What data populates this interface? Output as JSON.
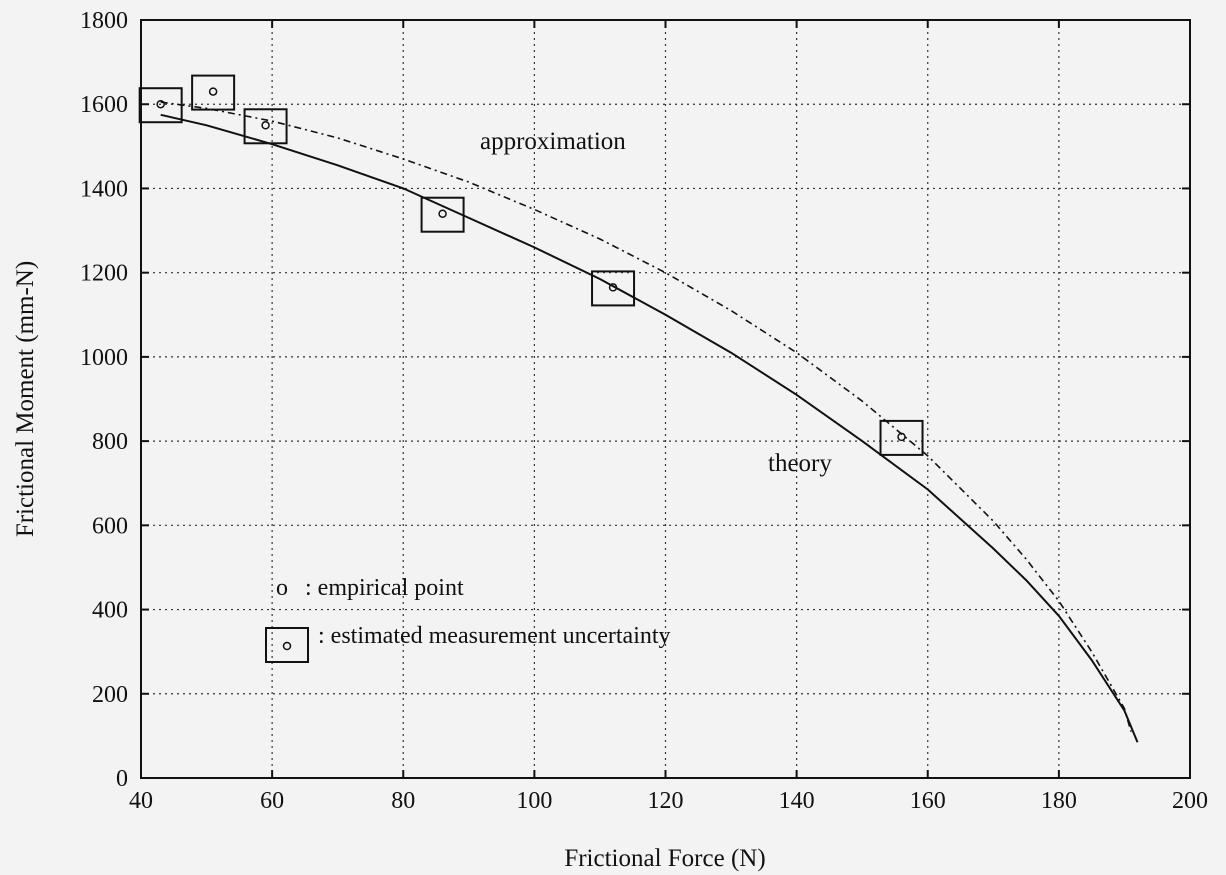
{
  "chart_data": {
    "type": "scatter",
    "xlabel": "Frictional Force (N)",
    "ylabel": "Frictional Moment (mm-N)",
    "xlim": [
      40,
      200
    ],
    "ylim": [
      0,
      1800
    ],
    "x_ticks": [
      "40",
      "60",
      "80",
      "100",
      "120",
      "140",
      "160",
      "180",
      "200"
    ],
    "y_ticks": [
      "0",
      "200",
      "400",
      "600",
      "800",
      "1000",
      "1200",
      "1400",
      "1600",
      "1800"
    ],
    "grid": true,
    "empirical_points": [
      {
        "x": 43,
        "y": 1600
      },
      {
        "x": 51,
        "y": 1630
      },
      {
        "x": 59,
        "y": 1550
      },
      {
        "x": 86,
        "y": 1340
      },
      {
        "x": 112,
        "y": 1165
      },
      {
        "x": 156,
        "y": 810
      }
    ],
    "series": [
      {
        "name": "theory",
        "style": "solid",
        "x": [
          43,
          50,
          60,
          70,
          80,
          90,
          100,
          110,
          120,
          130,
          140,
          150,
          160,
          170,
          175,
          180,
          185,
          190,
          192
        ],
        "y": [
          1575,
          1550,
          1505,
          1455,
          1400,
          1330,
          1260,
          1185,
          1100,
          1010,
          910,
          800,
          685,
          545,
          470,
          385,
          280,
          160,
          85
        ]
      },
      {
        "name": "approximation",
        "style": "dashdot",
        "x": [
          43,
          50,
          60,
          70,
          80,
          90,
          100,
          110,
          120,
          130,
          140,
          150,
          160,
          170,
          175,
          180,
          185,
          190,
          191
        ],
        "y": [
          1605,
          1590,
          1560,
          1520,
          1470,
          1415,
          1350,
          1280,
          1200,
          1110,
          1010,
          895,
          765,
          610,
          520,
          420,
          300,
          165,
          110
        ]
      }
    ],
    "annotations": [
      "approximation",
      "theory"
    ],
    "legend": [
      {
        "symbol": "o",
        "label": ": empirical point"
      },
      {
        "symbol": "boxed-o",
        "label": ": estimated measurement uncertainty"
      }
    ]
  }
}
